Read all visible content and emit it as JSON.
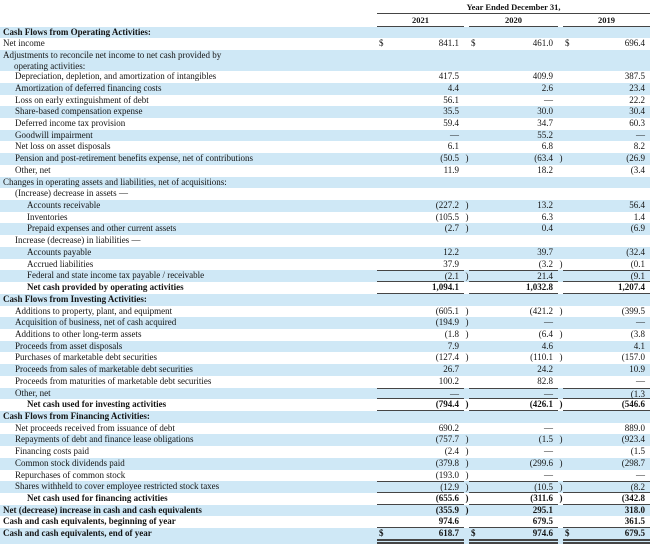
{
  "table": {
    "currency": "$",
    "colors": {
      "stripe": "#cfe8f6",
      "rule": "#454545",
      "text": "#141414"
    },
    "header": {
      "period_label": "Year Ended December 31,",
      "years": [
        "2021",
        "2020",
        "2019"
      ]
    },
    "rows": [
      {
        "label": "Cash Flows from Operating Activities:",
        "indent": 0,
        "bold": true,
        "values": null
      },
      {
        "label": "Net income",
        "indent": 0,
        "dollar": true,
        "values": [
          "841.1",
          "461.0",
          "696.4"
        ]
      },
      {
        "label": "Adjustments to reconcile net income to net cash provided by",
        "label2": "operating activities:",
        "indent": 0,
        "values": null
      },
      {
        "label": "Depreciation, depletion, and amortization of intangibles",
        "indent": 1,
        "values": [
          "417.5",
          "409.9",
          "387.5"
        ]
      },
      {
        "label": "Amortization of deferred financing costs",
        "indent": 1,
        "values": [
          "4.4",
          "2.6",
          "23.4"
        ]
      },
      {
        "label": "Loss on early extinguishment of debt",
        "indent": 1,
        "values": [
          "56.1",
          "—",
          "22.2"
        ]
      },
      {
        "label": "Share-based compensation expense",
        "indent": 1,
        "values": [
          "35.5",
          "30.0",
          "30.4"
        ]
      },
      {
        "label": "Deferred income tax provision",
        "indent": 1,
        "values": [
          "59.4",
          "34.7",
          "60.3"
        ]
      },
      {
        "label": "Goodwill impairment",
        "indent": 1,
        "values": [
          "—",
          "55.2",
          "—"
        ]
      },
      {
        "label": "Net loss on asset disposals",
        "indent": 1,
        "values": [
          "6.1",
          "6.8",
          "8.2"
        ]
      },
      {
        "label": "Pension and post-retirement benefits expense, net of contributions",
        "indent": 1,
        "values": [
          "(50.5)",
          "(63.4)",
          "(26.9)"
        ]
      },
      {
        "label": "Other, net",
        "indent": 1,
        "values": [
          "11.9",
          "18.2",
          "(3.4)"
        ]
      },
      {
        "label": "Changes in operating assets and liabilities, net of acquisitions:",
        "indent": 0,
        "values": null
      },
      {
        "label": "(Increase) decrease in assets —",
        "indent": 1,
        "values": null
      },
      {
        "label": "Accounts receivable",
        "indent": 2,
        "values": [
          "(227.2)",
          "13.2",
          "56.4"
        ]
      },
      {
        "label": "Inventories",
        "indent": 2,
        "values": [
          "(105.5)",
          "6.3",
          "1.4"
        ]
      },
      {
        "label": "Prepaid expenses and other current assets",
        "indent": 2,
        "values": [
          "(2.7)",
          "0.4",
          "(6.9)"
        ]
      },
      {
        "label": "Increase (decrease) in liabilities —",
        "indent": 1,
        "values": null
      },
      {
        "label": "Accounts payable",
        "indent": 2,
        "values": [
          "12.2",
          "39.7",
          "(32.4)"
        ]
      },
      {
        "label": "Accrued liabilities",
        "indent": 2,
        "values": [
          "37.9",
          "(3.2)",
          "(0.1)"
        ]
      },
      {
        "label": "Federal and state income tax payable / receivable",
        "indent": 2,
        "rule": "over-under",
        "values": [
          "(2.1)",
          "21.4",
          "(9.1)"
        ]
      },
      {
        "label": "Net cash provided by operating activities",
        "indent": 2,
        "bold": true,
        "rule": "under",
        "values": [
          "1,094.1",
          "1,032.8",
          "1,207.4"
        ]
      },
      {
        "label": "Cash Flows from Investing Activities:",
        "indent": 0,
        "bold": true,
        "values": null
      },
      {
        "label": "Additions to property, plant, and equipment",
        "indent": 1,
        "values": [
          "(605.1)",
          "(421.2)",
          "(399.5)"
        ]
      },
      {
        "label": "Acquisition of business, net of cash acquired",
        "indent": 1,
        "values": [
          "(194.9)",
          "—",
          "—"
        ]
      },
      {
        "label": "Additions to other long-term assets",
        "indent": 1,
        "values": [
          "(1.8)",
          "(6.4)",
          "(3.8)"
        ]
      },
      {
        "label": "Proceeds from asset disposals",
        "indent": 1,
        "values": [
          "7.9",
          "4.6",
          "4.1"
        ]
      },
      {
        "label": "Purchases of marketable debt securities",
        "indent": 1,
        "values": [
          "(127.4)",
          "(110.1)",
          "(157.0)"
        ]
      },
      {
        "label": "Proceeds from sales of marketable debt securities",
        "indent": 1,
        "values": [
          "26.7",
          "24.2",
          "10.9"
        ]
      },
      {
        "label": "Proceeds from maturities of marketable debt securities",
        "indent": 1,
        "values": [
          "100.2",
          "82.8",
          "—"
        ]
      },
      {
        "label": "Other, net",
        "indent": 1,
        "rule": "over-under",
        "values": [
          "—",
          "—",
          "(1.3)"
        ]
      },
      {
        "label": "Net cash used for investing activities",
        "indent": 2,
        "bold": true,
        "rule": "under",
        "values": [
          "(794.4)",
          "(426.1)",
          "(546.6)"
        ]
      },
      {
        "label": "Cash Flows from Financing Activities:",
        "indent": 0,
        "bold": true,
        "values": null
      },
      {
        "label": "Net proceeds received from issuance of debt",
        "indent": 1,
        "values": [
          "690.2",
          "—",
          "889.0"
        ]
      },
      {
        "label": "Repayments of debt and finance lease obligations",
        "indent": 1,
        "values": [
          "(757.7)",
          "(1.5)",
          "(923.4)"
        ]
      },
      {
        "label": "Financing costs paid",
        "indent": 1,
        "values": [
          "(2.4)",
          "—",
          "(1.5)"
        ]
      },
      {
        "label": "Common stock dividends paid",
        "indent": 1,
        "values": [
          "(379.8)",
          "(299.6)",
          "(298.7)"
        ]
      },
      {
        "label": "Repurchases of common stock",
        "indent": 1,
        "values": [
          "(193.0)",
          "—",
          "—"
        ]
      },
      {
        "label": "Shares withheld to cover employee restricted stock taxes",
        "indent": 1,
        "rule": "over-under",
        "values": [
          "(12.9)",
          "(10.5)",
          "(8.2)"
        ]
      },
      {
        "label": "Net cash used for financing activities",
        "indent": 2,
        "bold": true,
        "rule": "under",
        "values": [
          "(655.6)",
          "(311.6)",
          "(342.8)"
        ]
      },
      {
        "label": "Net (decrease) increase in cash and cash equivalents",
        "indent": 0,
        "bold": true,
        "values": [
          "(355.9)",
          "295.1",
          "318.0"
        ]
      },
      {
        "label": "Cash and cash equivalents, beginning of year",
        "indent": 0,
        "bold": true,
        "rule": "under",
        "values": [
          "974.6",
          "679.5",
          "361.5"
        ]
      },
      {
        "label": "Cash and cash equivalents, end of year",
        "indent": 0,
        "bold": true,
        "dollar": true,
        "rule": "double-under",
        "last": true,
        "values": [
          "618.7",
          "974.6",
          "679.5"
        ]
      }
    ]
  }
}
